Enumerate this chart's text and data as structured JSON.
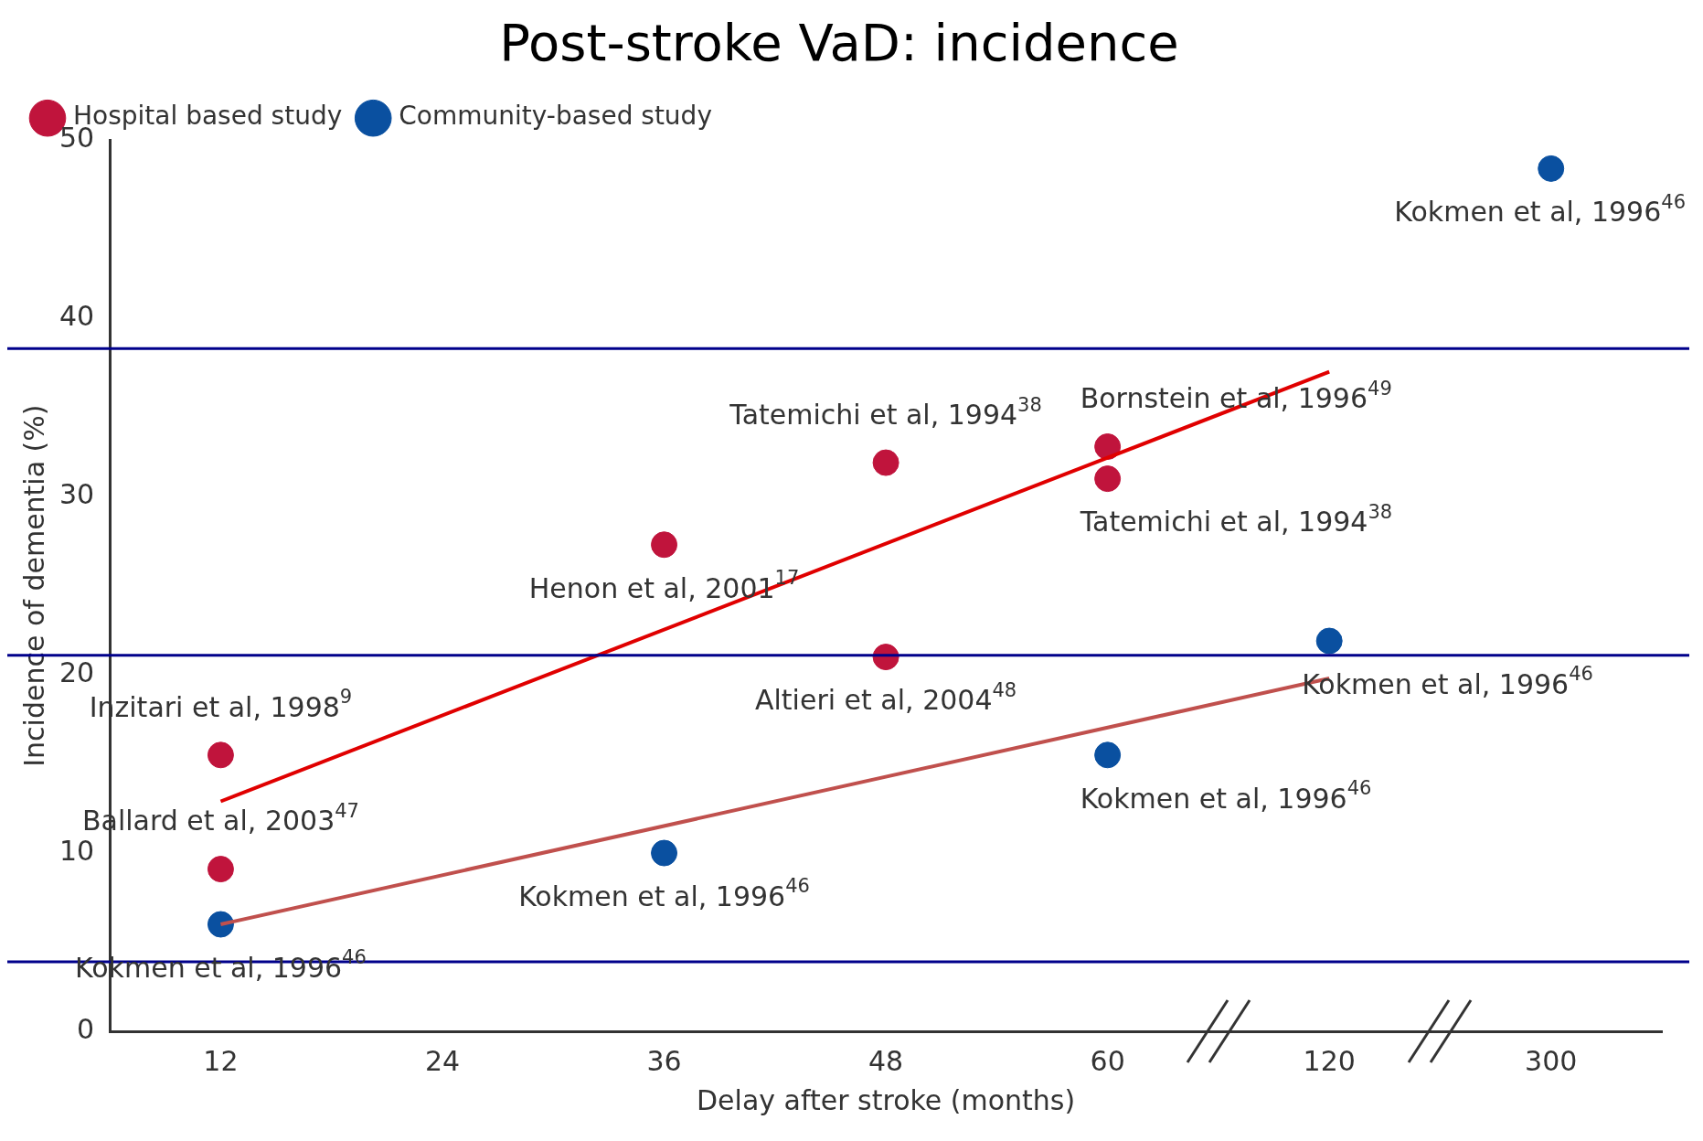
{
  "chart_data": {
    "type": "scatter",
    "title": "Post-stroke VaD: incidence",
    "xlabel": "Delay after stroke (months)",
    "ylabel": "Incidence of dementia (%)",
    "categories": [
      "12",
      "24",
      "36",
      "48",
      "60",
      "120",
      "300"
    ],
    "ylim": [
      0,
      50
    ],
    "yticks": [
      0,
      10,
      20,
      30,
      40,
      50
    ],
    "grid": false,
    "legend": "top left",
    "series": [
      {
        "name": "Hospital based study",
        "color": "#c0143c",
        "marker": "circle",
        "x": [
          "12",
          "12",
          "36",
          "48",
          "48",
          "60",
          "60"
        ],
        "values": [
          15.5,
          9.1,
          27.3,
          31.9,
          21.0,
          32.8,
          31.0
        ]
      },
      {
        "name": "Community-based study",
        "color": "#0a50a0",
        "marker": "circle",
        "x": [
          "12",
          "36",
          "60",
          "120",
          "300"
        ],
        "values": [
          6.0,
          10.0,
          15.5,
          21.9,
          48.4
        ]
      },
      {
        "color": "#e00000",
        "type": "line",
        "x": [
          "12",
          "120"
        ],
        "values": [
          12.9,
          37.0
        ]
      },
      {
        "color": "#c0504d",
        "type": "line",
        "x": [
          "12",
          "120"
        ],
        "values": [
          6.0,
          19.8
        ]
      }
    ],
    "ref_lines": [
      {
        "axis": "y",
        "value": 38.3,
        "color": "#00008b"
      },
      {
        "axis": "y",
        "value": 21.1,
        "color": "#00008b"
      },
      {
        "axis": "y",
        "value": 3.9,
        "color": "#00008b"
      }
    ],
    "annotations": [
      {
        "text": "Kokmen et al, 1996$^{46}$",
        "x": "300",
        "y": 48.4
      },
      {
        "text": "Tatemichi et al, 1994$^{38}$",
        "x": "48",
        "y": 31.9
      },
      {
        "text": "Bornstein et al, 1996$^{49}$",
        "x": "60",
        "y": 32.8
      },
      {
        "text": "Tatemichi et al, 1994$^{38}$",
        "x": "60",
        "y": 31.0
      },
      {
        "text": "Henon et al, 2001$^{17}$",
        "x": "36",
        "y": 27.3
      },
      {
        "text": "Altieri et al, 2004$^{48}$",
        "x": "48",
        "y": 21.0
      },
      {
        "text": "Kokmen et al, 1996$^{46}$",
        "x": "120",
        "y": 21.9
      },
      {
        "text": "Inzitari et al, 1998$^{9}$",
        "x": "12",
        "y": 15.5
      },
      {
        "text": "Kokmen et al, 1996$^{46}$",
        "x": "60",
        "y": 15.5
      },
      {
        "text": "Ballard et al, 2003$^{47}$",
        "x": "12",
        "y": 9.1
      },
      {
        "text": "Kokmen et al, 1996$^{46}$",
        "x": "36",
        "y": 10.0
      },
      {
        "text": "Kokmen et al, 1996$^{46}$",
        "x": "12",
        "y": 6.0
      }
    ]
  }
}
